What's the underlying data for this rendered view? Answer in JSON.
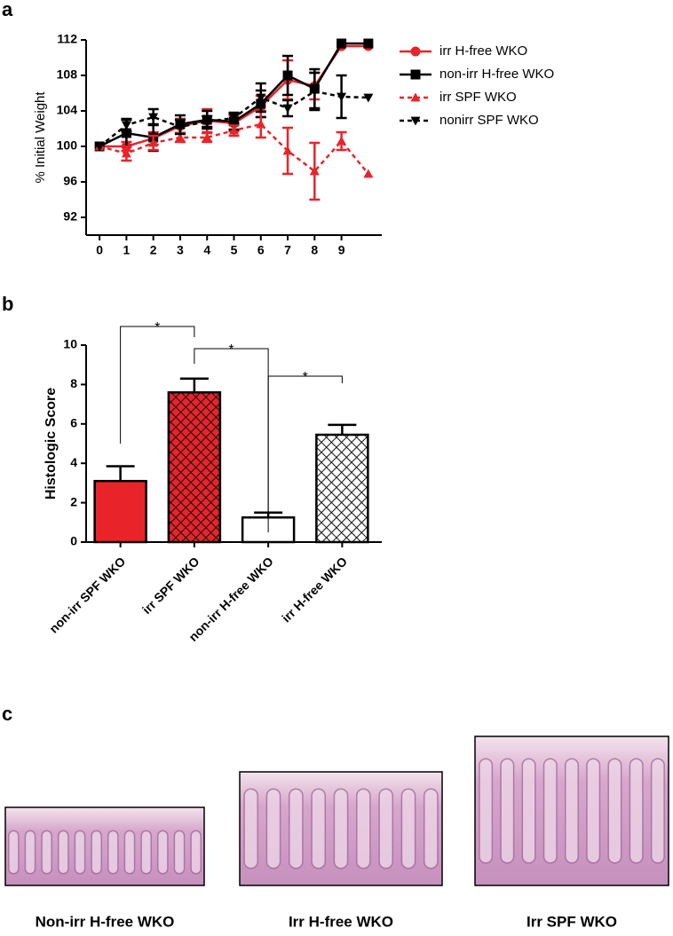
{
  "panels": [
    "a",
    "b",
    "c"
  ],
  "chart_data": [
    {
      "type": "line",
      "ylabel": "% Initial  Weight",
      "x": [
        0,
        1,
        2,
        3,
        4,
        5,
        6,
        7,
        8,
        9,
        10
      ],
      "xlim": [
        -0.5,
        10.5
      ],
      "xticks": [
        0,
        1,
        2,
        3,
        4,
        5,
        6,
        7,
        8,
        9
      ],
      "ylim": [
        90,
        112
      ],
      "yticks": [
        92,
        96,
        100,
        104,
        108,
        112
      ],
      "series": [
        {
          "name": "irr H-free WKO",
          "color": "#e8242a",
          "marker": "circle",
          "dash": false,
          "values": [
            100,
            100,
            100.9,
            102.3,
            102.9,
            102.6,
            104.5,
            107.5,
            106.8,
            111.3,
            111.3
          ],
          "errors": [
            0,
            0.5,
            0.7,
            0.8,
            1.3,
            0.9,
            1.2,
            2.2,
            1.5,
            0,
            0
          ]
        },
        {
          "name": "non-irr H-free WKO",
          "color": "#000000",
          "marker": "square",
          "dash": false,
          "values": [
            100,
            101.5,
            101,
            102.5,
            103,
            102.8,
            104.8,
            108,
            106.5,
            111.6,
            111.6
          ],
          "errors": [
            0,
            1.5,
            1.5,
            1,
            1,
            0.9,
            1.5,
            2.2,
            2.2,
            0,
            0
          ]
        },
        {
          "name": "irr SPF WKO",
          "color": "#e8242a",
          "marker": "triangle-up",
          "dash": true,
          "values": [
            100,
            99.2,
            100.4,
            101,
            101,
            101.8,
            102.5,
            99.5,
            97.2,
            100.6,
            96.9
          ],
          "errors": [
            0,
            0.8,
            0.8,
            0.5,
            0.5,
            0.6,
            1.5,
            2.6,
            3.2,
            1,
            0
          ]
        },
        {
          "name": "nonirr SPF WKO",
          "color": "#000000",
          "marker": "triangle-down",
          "dash": true,
          "values": [
            100,
            102.4,
            103.3,
            102.2,
            102.8,
            103.2,
            105.5,
            104.3,
            106.2,
            105.6,
            105.5
          ],
          "errors": [
            0,
            0.7,
            0.9,
            0.8,
            0.6,
            0.6,
            1.6,
            0.9,
            2.1,
            2.4,
            0
          ]
        }
      ]
    },
    {
      "type": "bar",
      "ylabel": "Histologic Score",
      "categories": [
        "non-irr SPF WKO",
        "irr SPF WKO",
        "non-irr H-free WKO",
        "irr H-free WKO"
      ],
      "values": [
        3.1,
        7.6,
        1.25,
        5.45
      ],
      "errors": [
        0.75,
        0.7,
        0.25,
        0.5
      ],
      "colors": [
        "#e8242a",
        "#e8242a",
        "#ffffff",
        "#ffffff"
      ],
      "hatch": [
        false,
        true,
        false,
        true
      ],
      "ylim": [
        0,
        10
      ],
      "yticks": [
        0,
        2,
        4,
        6,
        8,
        10
      ],
      "annotations": [
        "*",
        "*",
        "*"
      ]
    }
  ],
  "images": [
    {
      "caption": "Non-irr H-free WKO"
    },
    {
      "caption": "Irr H-free WKO"
    },
    {
      "caption": "Irr SPF WKO"
    }
  ]
}
